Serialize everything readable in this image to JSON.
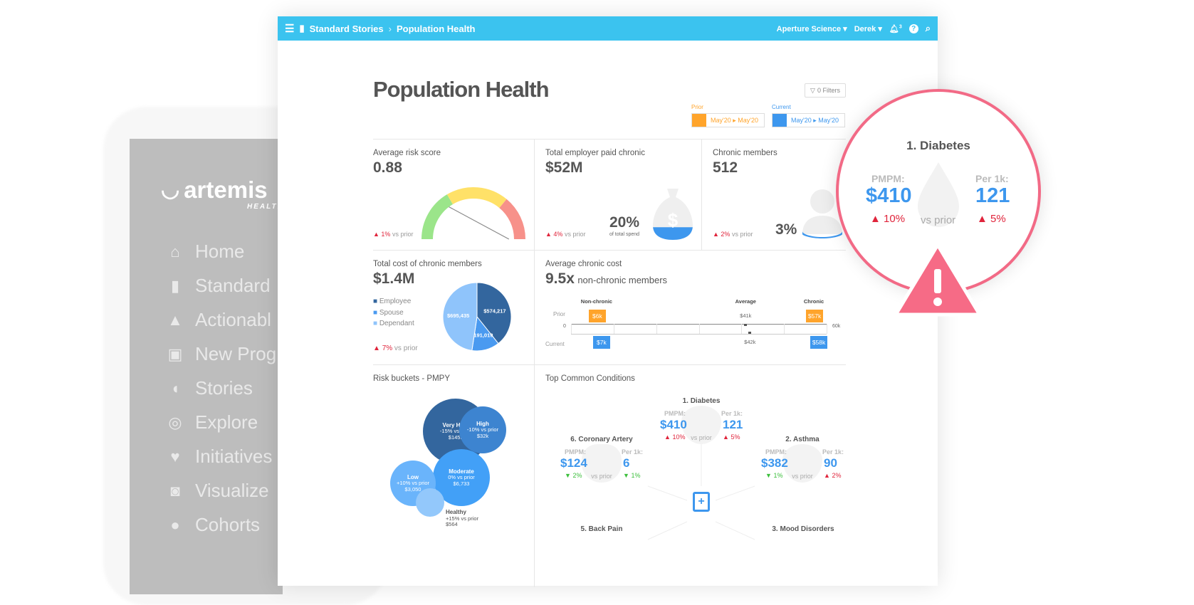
{
  "sidebar": {
    "logo": "artemis",
    "logo_sub": "HEALTH",
    "items": [
      {
        "label": "Home",
        "icon": "home-icon"
      },
      {
        "label": "Standard",
        "icon": "documents-icon"
      },
      {
        "label": "Actionabl",
        "icon": "warning-icon"
      },
      {
        "label": "New Prog",
        "icon": "money-icon"
      },
      {
        "label": "Stories",
        "icon": "stories-icon"
      },
      {
        "label": "Explore",
        "icon": "compass-icon"
      },
      {
        "label": "Initiatives",
        "icon": "heartbeat-icon"
      },
      {
        "label": "Visualize",
        "icon": "chart-icon"
      },
      {
        "label": "Cohorts",
        "icon": "users-icon"
      }
    ]
  },
  "topbar": {
    "breadcrumb_root": "Standard Stories",
    "breadcrumb_current": "Population Health",
    "org": "Aperture Science",
    "user": "Derek",
    "notifications": "3",
    "accent": "#3bc3ef"
  },
  "page": {
    "title": "Population Health",
    "filters": "0 Filters",
    "prior": {
      "label": "Prior",
      "range": "May'20 ▸ May'20",
      "color": "#ffa42b"
    },
    "current": {
      "label": "Current",
      "range": "May'20 ▸ May'20",
      "color": "#3d97ee"
    }
  },
  "cards": {
    "risk": {
      "label": "Average risk score",
      "value": "0.88",
      "change": "1%",
      "vs": "vs prior",
      "gauge_value": 0.88
    },
    "employer": {
      "label": "Total employer paid chronic",
      "value": "$52M",
      "change": "4%",
      "vs": "vs prior",
      "pct": "20%",
      "pct_label": "of total spend",
      "fill": 0.2
    },
    "members": {
      "label": "Chronic members",
      "value": "512",
      "change": "2%",
      "vs": "vs prior",
      "pct": "3%",
      "fill": 0.03
    },
    "total_cost": {
      "label": "Total cost of chronic members",
      "value": "$1.4M",
      "change": "7%",
      "vs": "vs prior"
    },
    "avg_cost": {
      "label": "Average chronic cost",
      "value": "9.5x",
      "suffix": "non-chronic members"
    },
    "risk_buckets": {
      "label": "Risk buckets - PMPY"
    },
    "conditions": {
      "label": "Top Common Conditions"
    }
  },
  "chart_data": [
    {
      "type": "pie",
      "categories": [
        "Employee",
        "Spouse",
        "Dependant"
      ],
      "values": [
        574217,
        191019,
        695435
      ],
      "labels": [
        "$574,217",
        "$191,019",
        "$695,435"
      ],
      "colors": [
        "#33669e",
        "#4a9af0",
        "#8fc4fb"
      ],
      "legend": "left"
    },
    {
      "type": "bar",
      "categories": [
        "Non-chronic",
        "Average",
        "Chronic"
      ],
      "series": [
        {
          "name": "Prior",
          "values": [
            6,
            41,
            57
          ],
          "labels": [
            "$6k",
            "$41k",
            "$57k"
          ]
        },
        {
          "name": "Current",
          "values": [
            7,
            42,
            58
          ],
          "labels": [
            "$7k",
            "$42k",
            "$58k"
          ]
        }
      ],
      "xlim": [
        0,
        60
      ],
      "tick_labels": [
        "0",
        "60k"
      ]
    },
    {
      "type": "bubble",
      "items": [
        {
          "name": "Very High",
          "change": "-15% vs prior",
          "value": "$145k",
          "color": "#33669e"
        },
        {
          "name": "High",
          "change": "-10% vs prior",
          "value": "$32k",
          "color": "#3d84d0"
        },
        {
          "name": "Moderate",
          "change": "0% vs prior",
          "value": "$6,733",
          "color": "#42a0f7"
        },
        {
          "name": "Low",
          "change": "+10% vs prior",
          "value": "$3,050",
          "color": "#6ab4fb"
        },
        {
          "name": "Healthy",
          "change": "+15% vs prior",
          "value": "$564",
          "color": "#93c8fb"
        }
      ]
    }
  ],
  "conditions": [
    {
      "name": "1. Diabetes",
      "pmpm_label": "PMPM:",
      "pmpm": "$410",
      "pmpm_change": "10%",
      "pmpm_dir": "up",
      "per1k_label": "Per 1k:",
      "per1k": "121",
      "per1k_change": "5%",
      "per1k_dir": "up",
      "vs": "vs prior"
    },
    {
      "name": "2. Asthma",
      "pmpm_label": "PMPM:",
      "pmpm": "$382",
      "pmpm_change": "1%",
      "pmpm_dir": "down",
      "per1k_label": "Per 1k:",
      "per1k": "90",
      "per1k_change": "2%",
      "per1k_dir": "up",
      "vs": "vs prior"
    },
    {
      "name": "6. Coronary Artery",
      "pmpm_label": "PMPM:",
      "pmpm": "$124",
      "pmpm_change": "2%",
      "pmpm_dir": "down",
      "per1k_label": "Per 1k:",
      "per1k": "6",
      "per1k_change": "1%",
      "per1k_dir": "down",
      "vs": "vs prior"
    },
    {
      "name": "5. Back Pain"
    },
    {
      "name": "3. Mood Disorders"
    }
  ],
  "callout": {
    "name": "1. Diabetes",
    "pmpm_label": "PMPM:",
    "pmpm": "$410",
    "pmpm_change": "10%",
    "per1k_label": "Per 1k:",
    "per1k": "121",
    "per1k_change": "5%",
    "vs": "vs prior",
    "color": "#f26a86"
  }
}
